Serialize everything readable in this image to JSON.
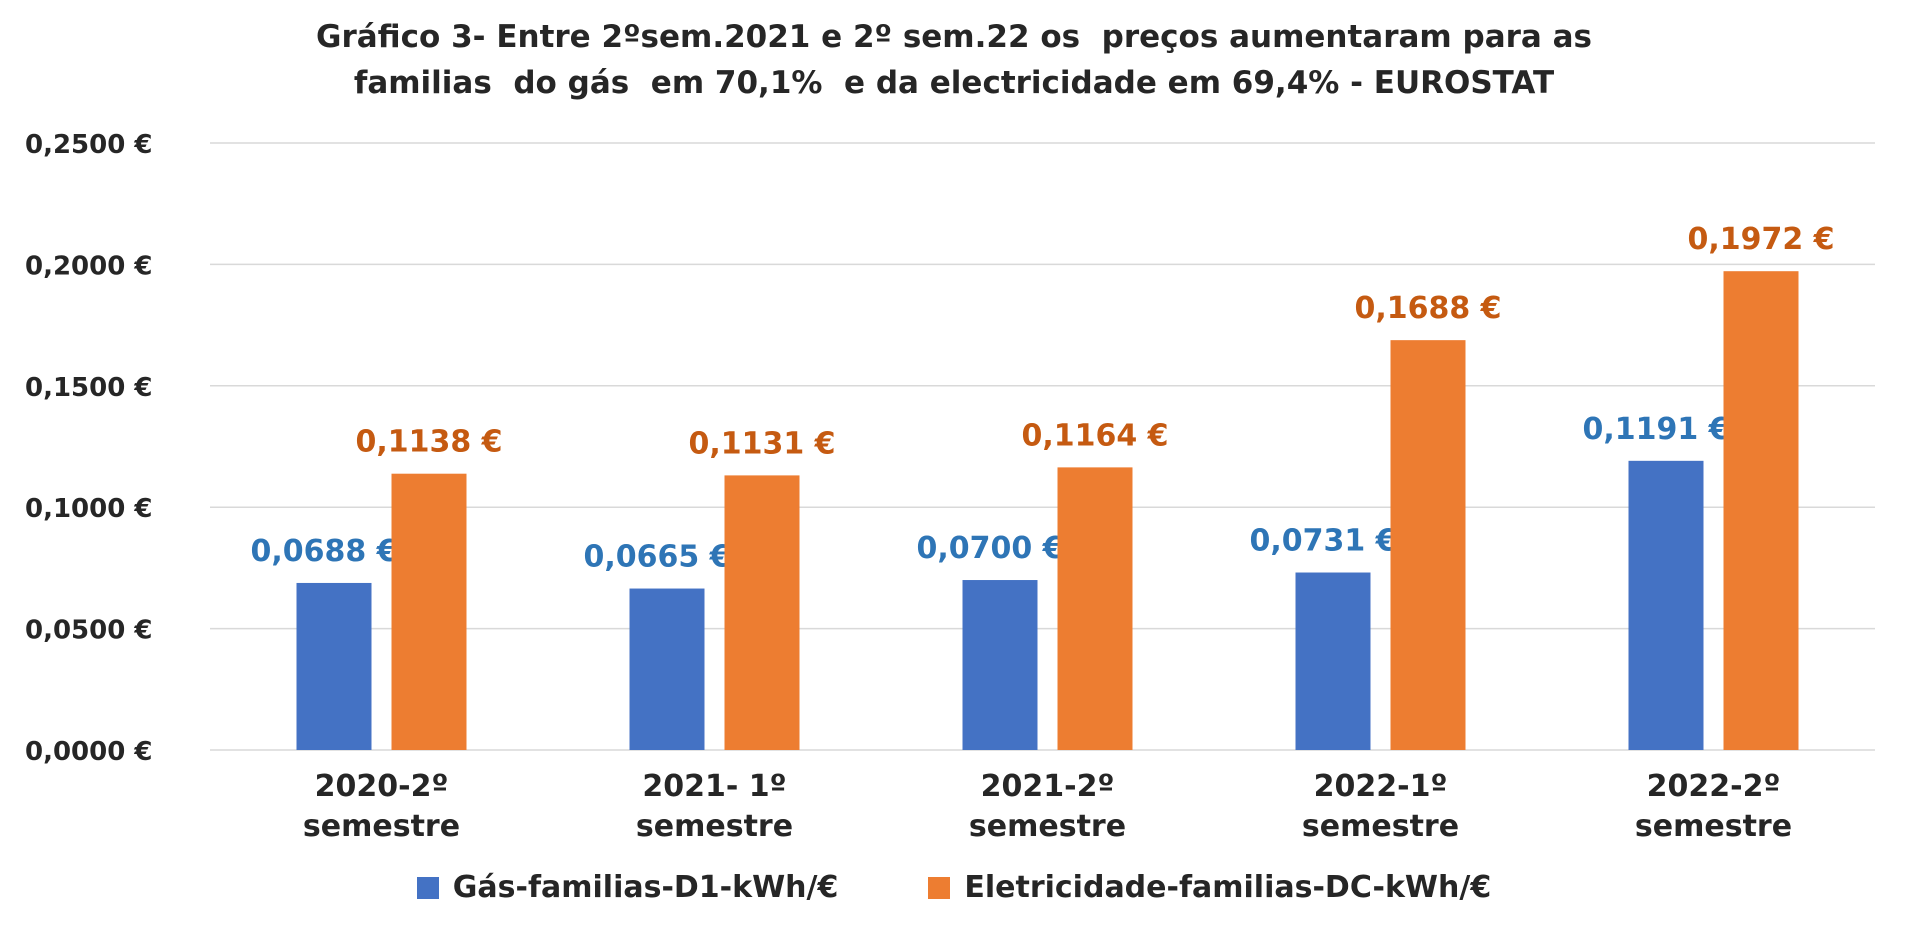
{
  "chart_data": {
    "type": "bar",
    "title_lines": [
      "Gráfico 3- Entre 2ºsem.2021 e 2º sem.22 os  preços aumentaram para as",
      "familias  do gás  em 70,1%  e da electricidade em 69,4% - EUROSTAT"
    ],
    "categories": [
      [
        "2020-2º",
        "semestre"
      ],
      [
        "2021- 1º",
        "semestre"
      ],
      [
        "2021-2º",
        "semestre"
      ],
      [
        "2022-1º",
        "semestre"
      ],
      [
        "2022-2º",
        "semestre"
      ]
    ],
    "series": [
      {
        "name": "Gás-familias-D1-kWh/€",
        "color": "#4472c4",
        "label_color": "#2e75b6",
        "values": [
          0.0688,
          0.0665,
          0.07,
          0.0731,
          0.1191
        ],
        "labels": [
          "0,0688 €",
          "0,0665 €",
          "0,0700 €",
          "0,0731 €",
          "0,1191 €"
        ]
      },
      {
        "name": "Eletricidade-familias-DC-kWh/€",
        "color": "#ed7d31",
        "label_color": "#c55a11",
        "values": [
          0.1138,
          0.1131,
          0.1164,
          0.1688,
          0.1972
        ],
        "labels": [
          "0,1138 €",
          "0,1131 €",
          "0,1164 €",
          "0,1688 €",
          "0,1972 €"
        ]
      }
    ],
    "y_ticks": [
      {
        "value": 0.25,
        "label": "0,2500 €"
      },
      {
        "value": 0.2,
        "label": "0,2000 €"
      },
      {
        "value": 0.15,
        "label": "0,1500 €"
      },
      {
        "value": 0.1,
        "label": "0,1000 €"
      },
      {
        "value": 0.05,
        "label": "0,0500 €"
      },
      {
        "value": 0.0,
        "label": "0,0000 €"
      }
    ],
    "ylim": [
      0,
      0.25
    ],
    "grid": true,
    "legend_position": "bottom"
  }
}
